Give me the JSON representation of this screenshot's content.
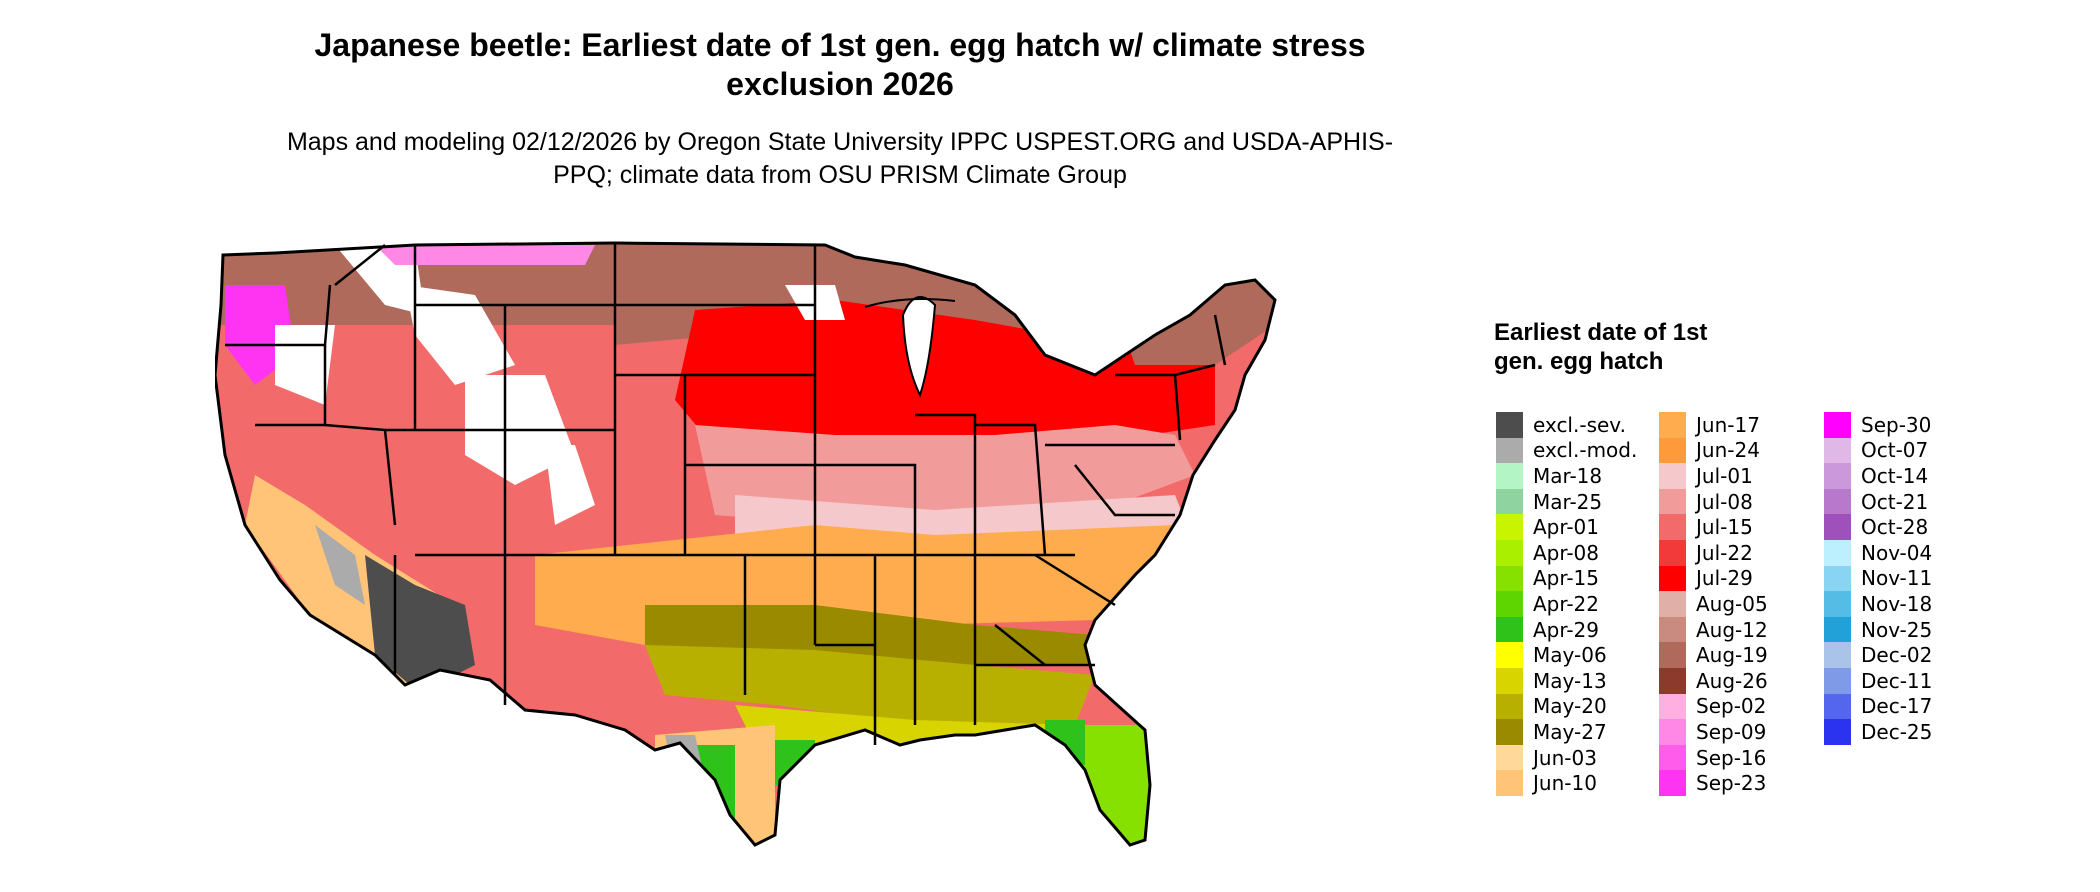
{
  "title": "Japanese beetle: Earliest date of 1st gen. egg hatch w/ climate stress exclusion 2026",
  "subtitle": "Maps and modeling 02/12/2026 by Oregon State University IPPC USPEST.ORG and USDA-APHIS-PPQ; climate data from OSU PRISM Climate Group",
  "legend": {
    "title": "Earliest date of 1st gen. egg hatch",
    "columns": [
      [
        {
          "label": "excl.-sev.",
          "color": "#4d4d4d"
        },
        {
          "label": "excl.-mod.",
          "color": "#ababab"
        },
        {
          "label": "Mar-18",
          "color": "#b3f5c4"
        },
        {
          "label": "Mar-25",
          "color": "#8fd4a0"
        },
        {
          "label": "Apr-01",
          "color": "#c9f400"
        },
        {
          "label": "Apr-08",
          "color": "#aaee00"
        },
        {
          "label": "Apr-15",
          "color": "#86e000"
        },
        {
          "label": "Apr-22",
          "color": "#5ed400"
        },
        {
          "label": "Apr-29",
          "color": "#2fc21a"
        },
        {
          "label": "May-06",
          "color": "#ffff00"
        },
        {
          "label": "May-13",
          "color": "#d8d400"
        },
        {
          "label": "May-20",
          "color": "#b8b000"
        },
        {
          "label": "May-27",
          "color": "#9a8a00"
        },
        {
          "label": "Jun-03",
          "color": "#ffd89a"
        },
        {
          "label": "Jun-10",
          "color": "#ffc478"
        }
      ],
      [
        {
          "label": "Jun-17",
          "color": "#ffac4e"
        },
        {
          "label": "Jun-24",
          "color": "#ff9a3a"
        },
        {
          "label": "Jul-01",
          "color": "#f5c9cc"
        },
        {
          "label": "Jul-08",
          "color": "#f29b9b"
        },
        {
          "label": "Jul-15",
          "color": "#f26a6a"
        },
        {
          "label": "Jul-22",
          "color": "#f23a3a"
        },
        {
          "label": "Jul-29",
          "color": "#ff0000"
        },
        {
          "label": "Aug-05",
          "color": "#e0b0a8"
        },
        {
          "label": "Aug-12",
          "color": "#c98a80"
        },
        {
          "label": "Aug-19",
          "color": "#b06a5c"
        },
        {
          "label": "Aug-26",
          "color": "#8c3a2c"
        },
        {
          "label": "Sep-02",
          "color": "#ffb0e0"
        },
        {
          "label": "Sep-09",
          "color": "#ff88e6"
        },
        {
          "label": "Sep-16",
          "color": "#ff5cec"
        },
        {
          "label": "Sep-23",
          "color": "#ff33f2"
        }
      ],
      [
        {
          "label": "Sep-30",
          "color": "#ff00ff"
        },
        {
          "label": "Oct-07",
          "color": "#e0b8e8"
        },
        {
          "label": "Oct-14",
          "color": "#cc98dc"
        },
        {
          "label": "Oct-21",
          "color": "#b878cc"
        },
        {
          "label": "Oct-28",
          "color": "#a050bb"
        },
        {
          "label": "Nov-04",
          "color": "#bdf0ff"
        },
        {
          "label": "Nov-11",
          "color": "#88d4f2"
        },
        {
          "label": "Nov-18",
          "color": "#55bce6"
        },
        {
          "label": "Nov-25",
          "color": "#22a0d8"
        },
        {
          "label": "Dec-02",
          "color": "#a9c4e8"
        },
        {
          "label": "Dec-11",
          "color": "#7f9ae6"
        },
        {
          "label": "Dec-17",
          "color": "#5566ee"
        },
        {
          "label": "Dec-25",
          "color": "#2b33f0"
        }
      ]
    ]
  },
  "map_regions": {
    "west": "#f26a6a",
    "mountains": "#ffffff",
    "north": "#b06a5c",
    "corn_belt": "#ff0000",
    "mid": "#f29b9b",
    "southcentral": "#ffac4e",
    "gulf": "#b8b000",
    "florida": "#86e000",
    "desert": "#4d4d4d",
    "excl_mod": "#ababab",
    "high_alt": "#ff33f2",
    "california_valley": "#ffc478"
  }
}
